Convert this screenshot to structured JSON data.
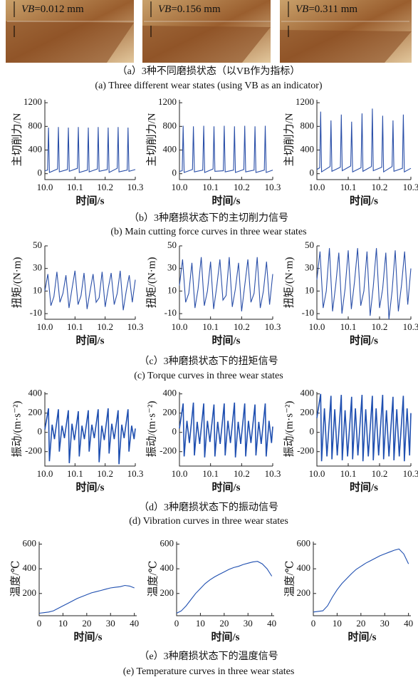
{
  "photos": [
    {
      "symbol": "VB",
      "value": "=0.012 mm"
    },
    {
      "symbol": "VB",
      "value": "=0.156 mm"
    },
    {
      "symbol": "VB",
      "value": "=0.311 mm"
    }
  ],
  "captions": [
    {
      "cn": "（a）3种不同磨损状态（以VB作为指标）",
      "en": "(a) Three different wear states (using VB as an indicator)"
    },
    {
      "cn": "（b）3种磨损状态下的主切削力信号",
      "en": "(b) Main cutting force curves in three wear states"
    },
    {
      "cn": "（c）3种磨损状态下的扭矩信号",
      "en": "(c) Torque curves in three wear states"
    },
    {
      "cn": "（d）3种磨损状态下的振动信号",
      "en": "(d) Vibration curves in three wear states"
    },
    {
      "cn": "（e）3种磨损状态下的温度信号",
      "en": "(e) Temperature curves in three wear states"
    }
  ],
  "chart_data": [
    {
      "type": "line",
      "xlabel": "时间/s",
      "ylabel": "主切削力/N",
      "color": "#2a4fa8",
      "xlim": [
        10,
        10.3
      ],
      "xticks": [
        {
          "value": 10,
          "label": "10.0"
        },
        10.1,
        10.2,
        10.3
      ],
      "ylim": [
        -100,
        1250
      ],
      "yticks": [
        0,
        400,
        800,
        1200
      ],
      "x": [
        10,
        10.009,
        10.012,
        10.015,
        10.042,
        10.045,
        10.048,
        10.075,
        10.078,
        10.081,
        10.108,
        10.111,
        10.114,
        10.141,
        10.144,
        10.147,
        10.174,
        10.177,
        10.18,
        10.207,
        10.21,
        10.213,
        10.24,
        10.243,
        10.246,
        10.273,
        10.276,
        10.279,
        10.3
      ],
      "values": [
        50,
        60,
        780,
        20,
        80,
        790,
        30,
        70,
        780,
        40,
        90,
        790,
        20,
        60,
        780,
        30,
        80,
        790,
        40,
        70,
        780,
        20,
        90,
        790,
        30,
        60,
        780,
        40,
        70
      ]
    },
    {
      "type": "line",
      "xlabel": "时间/s",
      "ylabel": "主切削力/N",
      "color": "#2a4fa8",
      "xlim": [
        10,
        10.3
      ],
      "xticks": [
        {
          "value": 10,
          "label": "10.0"
        },
        10.1,
        10.2,
        10.3
      ],
      "ylim": [
        -100,
        1250
      ],
      "yticks": [
        0,
        400,
        800,
        1200
      ],
      "x": [
        10,
        10.009,
        10.012,
        10.015,
        10.042,
        10.045,
        10.048,
        10.075,
        10.078,
        10.081,
        10.108,
        10.111,
        10.114,
        10.141,
        10.144,
        10.147,
        10.174,
        10.177,
        10.18,
        10.207,
        10.21,
        10.213,
        10.24,
        10.243,
        10.246,
        10.273,
        10.276,
        10.279,
        10.3
      ],
      "values": [
        40,
        50,
        810,
        20,
        70,
        800,
        30,
        60,
        810,
        20,
        80,
        800,
        40,
        50,
        810,
        30,
        60,
        800,
        20,
        70,
        810,
        30,
        60,
        800,
        20,
        60,
        810,
        20,
        60
      ]
    },
    {
      "type": "line",
      "xlabel": "时间/s",
      "ylabel": "主切削力/N",
      "color": "#2a4fa8",
      "xlim": [
        10,
        10.3
      ],
      "xticks": [
        {
          "value": 10,
          "label": "10.0"
        },
        10.1,
        10.2,
        10.3
      ],
      "ylim": [
        -100,
        1250
      ],
      "yticks": [
        0,
        400,
        800,
        1200
      ],
      "x": [
        10,
        10.009,
        10.012,
        10.015,
        10.042,
        10.045,
        10.048,
        10.075,
        10.078,
        10.081,
        10.108,
        10.111,
        10.114,
        10.141,
        10.144,
        10.147,
        10.174,
        10.177,
        10.18,
        10.207,
        10.21,
        10.213,
        10.24,
        10.243,
        10.246,
        10.273,
        10.276,
        10.279,
        10.3
      ],
      "values": [
        70,
        100,
        1050,
        30,
        120,
        900,
        40,
        110,
        1000,
        50,
        130,
        880,
        30,
        100,
        1020,
        40,
        120,
        1100,
        50,
        110,
        980,
        30,
        120,
        900,
        40,
        90,
        1000,
        30,
        90
      ]
    },
    {
      "type": "line",
      "xlabel": "时间/s",
      "ylabel": "扭矩/(N·m)",
      "color": "#2a4fa8",
      "xlim": [
        10,
        10.3
      ],
      "xticks": [
        {
          "value": 10,
          "label": "10.0"
        },
        10.1,
        10.2,
        10.3
      ],
      "ylim": [
        -15,
        50
      ],
      "yticks": [
        -10,
        10,
        30,
        50
      ],
      "x": [
        10,
        10.01,
        10.02,
        10.03,
        10.04,
        10.05,
        10.06,
        10.07,
        10.08,
        10.09,
        10.1,
        10.11,
        10.12,
        10.13,
        10.14,
        10.15,
        10.16,
        10.17,
        10.18,
        10.19,
        10.2,
        10.21,
        10.22,
        10.23,
        10.24,
        10.25,
        10.26,
        10.27,
        10.28,
        10.29,
        10.3
      ],
      "values": [
        10,
        25,
        -3,
        5,
        27,
        0,
        8,
        24,
        -5,
        12,
        28,
        -2,
        6,
        26,
        -6,
        10,
        25,
        0,
        4,
        27,
        -4,
        12,
        26,
        -2,
        8,
        28,
        -7,
        10,
        24,
        0,
        20
      ]
    },
    {
      "type": "line",
      "xlabel": "时间/s",
      "ylabel": "扭矩/(N·m)",
      "color": "#2a4fa8",
      "xlim": [
        10,
        10.3
      ],
      "xticks": [
        {
          "value": 10,
          "label": "10.0"
        },
        10.1,
        10.2,
        10.3
      ],
      "ylim": [
        -15,
        50
      ],
      "yticks": [
        -10,
        10,
        30,
        50
      ],
      "x": [
        10,
        10.01,
        10.02,
        10.03,
        10.04,
        10.05,
        10.06,
        10.07,
        10.08,
        10.09,
        10.1,
        10.11,
        10.12,
        10.13,
        10.14,
        10.15,
        10.16,
        10.17,
        10.18,
        10.19,
        10.2,
        10.21,
        10.22,
        10.23,
        10.24,
        10.25,
        10.26,
        10.27,
        10.28,
        10.29,
        10.3
      ],
      "values": [
        15,
        38,
        0,
        8,
        35,
        -5,
        12,
        40,
        -3,
        10,
        36,
        -6,
        14,
        38,
        2,
        6,
        40,
        -4,
        12,
        35,
        -8,
        15,
        38,
        0,
        8,
        40,
        -5,
        10,
        36,
        -2,
        25
      ]
    },
    {
      "type": "line",
      "xlabel": "时间/s",
      "ylabel": "扭矩/(N·m)",
      "color": "#2a4fa8",
      "xlim": [
        10,
        10.3
      ],
      "xticks": [
        {
          "value": 10,
          "label": "10.0"
        },
        10.1,
        10.2,
        10.3
      ],
      "ylim": [
        -15,
        50
      ],
      "yticks": [
        -10,
        10,
        30,
        50
      ],
      "x": [
        10,
        10.01,
        10.02,
        10.03,
        10.04,
        10.05,
        10.06,
        10.07,
        10.08,
        10.09,
        10.1,
        10.11,
        10.12,
        10.13,
        10.14,
        10.15,
        10.16,
        10.17,
        10.18,
        10.19,
        10.2,
        10.21,
        10.22,
        10.23,
        10.24,
        10.25,
        10.26,
        10.27,
        10.28,
        10.29,
        10.3
      ],
      "values": [
        20,
        45,
        -5,
        10,
        48,
        -8,
        15,
        44,
        -10,
        12,
        46,
        -6,
        18,
        48,
        -3,
        10,
        45,
        -12,
        14,
        48,
        -5,
        12,
        44,
        -15,
        10,
        46,
        -8,
        15,
        45,
        -2,
        30
      ]
    },
    {
      "type": "line",
      "xlabel": "时间/s",
      "ylabel": "振动/(m·s⁻²)",
      "color": "#1f4fb0",
      "xlim": [
        10,
        10.3
      ],
      "xticks": [
        {
          "value": 10,
          "label": "10.0"
        },
        10.1,
        10.2,
        10.3
      ],
      "ylim": [
        -350,
        420
      ],
      "yticks": [
        -200,
        0,
        200,
        400
      ],
      "x": [
        10,
        10.012,
        10.015,
        10.024,
        10.032,
        10.045,
        10.048,
        10.057,
        10.065,
        10.078,
        10.081,
        10.09,
        10.098,
        10.111,
        10.114,
        10.123,
        10.131,
        10.144,
        10.147,
        10.156,
        10.164,
        10.177,
        10.18,
        10.189,
        10.197,
        10.21,
        10.213,
        10.222,
        10.23,
        10.243,
        10.246,
        10.255,
        10.263,
        10.276,
        10.279,
        10.288,
        10.296,
        10.3
      ],
      "values": [
        30,
        250,
        -300,
        80,
        -70,
        240,
        -200,
        70,
        -60,
        230,
        -320,
        90,
        -80,
        220,
        -250,
        70,
        -70,
        230,
        -200,
        80,
        -60,
        240,
        -310,
        70,
        -80,
        250,
        -220,
        90,
        -70,
        230,
        -330,
        80,
        -60,
        240,
        -200,
        70,
        -70,
        40
      ]
    },
    {
      "type": "line",
      "xlabel": "时间/s",
      "ylabel": "振动/(m·s⁻²)",
      "color": "#1f4fb0",
      "xlim": [
        10,
        10.3
      ],
      "xticks": [
        {
          "value": 10,
          "label": "10.0"
        },
        10.1,
        10.2,
        10.3
      ],
      "ylim": [
        -350,
        420
      ],
      "yticks": [
        -200,
        0,
        200,
        400
      ],
      "x": [
        10,
        10.012,
        10.015,
        10.024,
        10.032,
        10.045,
        10.048,
        10.057,
        10.065,
        10.078,
        10.081,
        10.09,
        10.098,
        10.111,
        10.114,
        10.123,
        10.131,
        10.144,
        10.147,
        10.156,
        10.164,
        10.177,
        10.18,
        10.189,
        10.197,
        10.21,
        10.213,
        10.222,
        10.23,
        10.243,
        10.246,
        10.255,
        10.263,
        10.276,
        10.279,
        10.288,
        10.296,
        10.3
      ],
      "values": [
        40,
        300,
        -250,
        120,
        -110,
        310,
        -240,
        110,
        -120,
        300,
        -260,
        120,
        -100,
        290,
        -250,
        110,
        -120,
        300,
        -240,
        120,
        -110,
        310,
        -260,
        110,
        -120,
        300,
        -250,
        120,
        -110,
        290,
        -240,
        110,
        -120,
        300,
        -250,
        120,
        -110,
        60
      ]
    },
    {
      "type": "line",
      "xlabel": "时间/s",
      "ylabel": "振动/(m·s⁻²)",
      "color": "#1f4fb0",
      "xlim": [
        10,
        10.3
      ],
      "xticks": [
        {
          "value": 10,
          "label": "10.0"
        },
        10.1,
        10.2,
        10.3
      ],
      "ylim": [
        -350,
        420
      ],
      "yticks": [
        -200,
        0,
        200,
        400
      ],
      "x": [
        10,
        10.012,
        10.015,
        10.024,
        10.032,
        10.045,
        10.048,
        10.057,
        10.065,
        10.078,
        10.081,
        10.09,
        10.098,
        10.111,
        10.114,
        10.123,
        10.131,
        10.144,
        10.147,
        10.156,
        10.164,
        10.177,
        10.18,
        10.189,
        10.197,
        10.21,
        10.213,
        10.222,
        10.23,
        10.243,
        10.246,
        10.255,
        10.263,
        10.276,
        10.279,
        10.288,
        10.296,
        10.3
      ],
      "values": [
        150,
        400,
        -300,
        250,
        -250,
        380,
        -280,
        240,
        -240,
        390,
        -290,
        230,
        -250,
        370,
        -280,
        250,
        -240,
        390,
        -300,
        240,
        -250,
        380,
        -290,
        250,
        -240,
        390,
        -280,
        230,
        -250,
        370,
        -290,
        240,
        -250,
        380,
        -300,
        250,
        -240,
        200
      ]
    },
    {
      "type": "line",
      "xlabel": "时间/s",
      "ylabel": "温度/℃",
      "color": "#1f4fb0",
      "xlim": [
        0,
        41
      ],
      "xticks": [
        0,
        10,
        20,
        30,
        40
      ],
      "ylim": [
        20,
        620
      ],
      "yticks": [
        200,
        400,
        600
      ],
      "x": [
        0,
        2,
        4,
        6,
        8,
        10,
        12,
        14,
        16,
        18,
        20,
        22,
        24,
        26,
        28,
        30,
        32,
        34,
        36,
        38,
        40
      ],
      "values": [
        40,
        45,
        50,
        60,
        80,
        100,
        120,
        140,
        160,
        175,
        190,
        205,
        215,
        225,
        235,
        245,
        250,
        255,
        265,
        260,
        245
      ]
    },
    {
      "type": "line",
      "xlabel": "时间/s",
      "ylabel": "温度/℃",
      "color": "#1f4fb0",
      "xlim": [
        0,
        41
      ],
      "xticks": [
        0,
        10,
        20,
        30,
        40
      ],
      "ylim": [
        20,
        620
      ],
      "yticks": [
        200,
        400,
        600
      ],
      "x": [
        0,
        2,
        4,
        6,
        8,
        10,
        12,
        14,
        16,
        18,
        20,
        22,
        24,
        26,
        28,
        30,
        32,
        34,
        36,
        38,
        40
      ],
      "values": [
        40,
        60,
        100,
        150,
        200,
        240,
        280,
        310,
        335,
        355,
        375,
        395,
        410,
        420,
        435,
        445,
        455,
        460,
        440,
        400,
        340
      ]
    },
    {
      "type": "line",
      "xlabel": "时间/s",
      "ylabel": "温度/℃",
      "color": "#1f4fb0",
      "xlim": [
        0,
        41
      ],
      "xticks": [
        0,
        10,
        20,
        30,
        40
      ],
      "ylim": [
        20,
        620
      ],
      "yticks": [
        200,
        400,
        600
      ],
      "x": [
        0,
        2,
        4,
        6,
        8,
        10,
        12,
        14,
        16,
        18,
        20,
        22,
        24,
        26,
        28,
        30,
        32,
        34,
        36,
        38,
        40
      ],
      "values": [
        50,
        55,
        60,
        100,
        170,
        230,
        280,
        320,
        360,
        395,
        420,
        445,
        465,
        485,
        505,
        520,
        535,
        550,
        560,
        520,
        440
      ]
    }
  ]
}
